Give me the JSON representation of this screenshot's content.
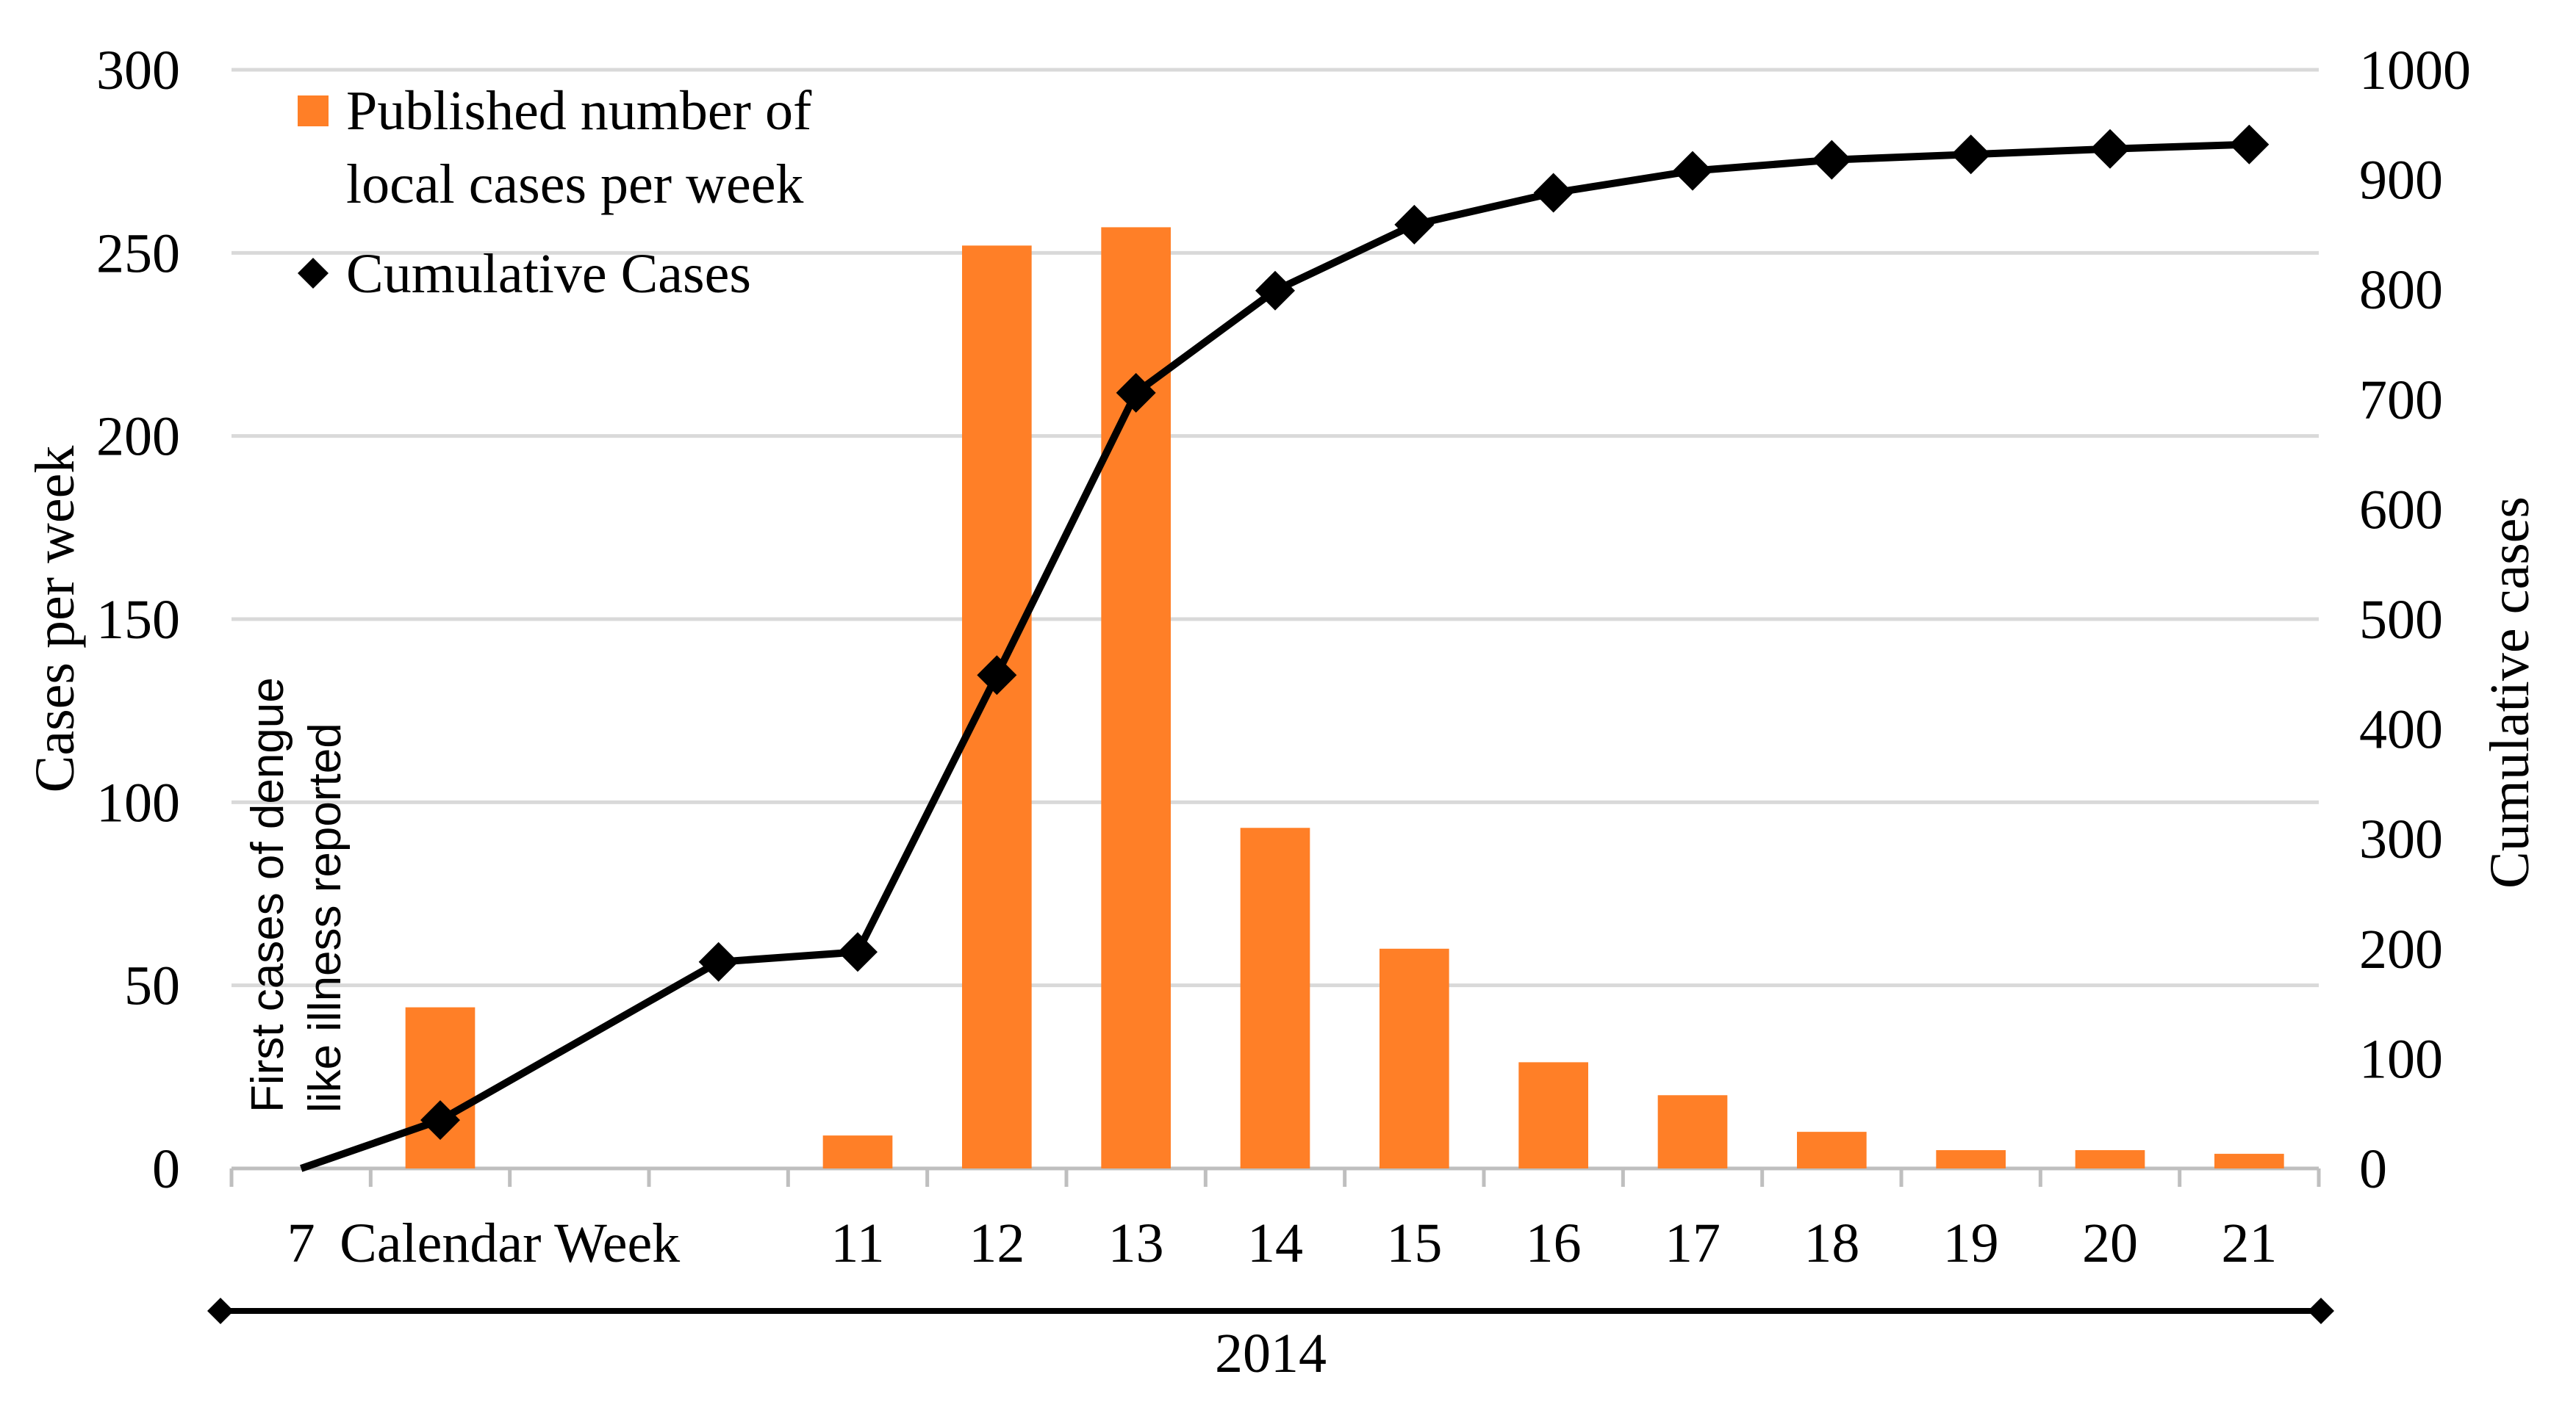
{
  "chart_data": {
    "type": "bar",
    "categories": [
      "7",
      "Calendar Week",
      "",
      "",
      "11",
      "12",
      "13",
      "14",
      "15",
      "16",
      "17",
      "18",
      "19",
      "20",
      "21"
    ],
    "series": [
      {
        "name": "Published number of local cases per week",
        "type": "bar",
        "axis": "left",
        "color": "#ff7f27",
        "values": [
          null,
          44,
          null,
          null,
          9,
          252,
          257,
          93,
          60,
          29,
          20,
          10,
          5,
          5,
          4
        ]
      },
      {
        "name": "Cumulative Cases",
        "type": "line",
        "axis": "right",
        "color": "#000000",
        "marker": "diamond",
        "values": [
          0,
          44,
          null,
          188,
          197,
          449,
          706,
          799,
          859,
          888,
          908,
          918,
          923,
          928,
          932
        ]
      }
    ],
    "legend": [
      "Published number of local cases per week",
      "Cumulative Cases"
    ],
    "legend_lines": [
      [
        "Published number of",
        "local cases per week"
      ],
      [
        "Cumulative Cases"
      ]
    ],
    "legend_position": "top-left",
    "ylabel": "Cases per week",
    "y2label": "Cumulative cases",
    "ylim": [
      0,
      300
    ],
    "y2lim": [
      0,
      1000
    ],
    "yticks": [
      "0",
      "50",
      "100",
      "150",
      "200",
      "250",
      "300"
    ],
    "y2ticks": [
      "0",
      "100",
      "200",
      "300",
      "400",
      "500",
      "600",
      "700",
      "800",
      "900",
      "1000"
    ],
    "year_label": "2014",
    "annotation": {
      "lines": [
        "First cases of dengue",
        "like illness reported"
      ]
    },
    "grid": true
  }
}
